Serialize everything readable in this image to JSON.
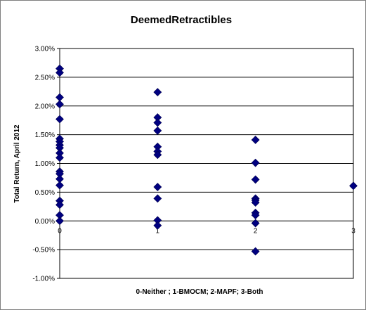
{
  "chart_data": {
    "type": "scatter",
    "title": "DeemedRetractibles",
    "xlabel": "0-Neither ; 1-BMOCM; 2-MAPF; 3-Both",
    "ylabel": "Total Return, April 2012",
    "xlim": [
      0,
      3
    ],
    "ylim": [
      -1.0,
      3.0
    ],
    "x_ticks": [
      "0",
      "1",
      "2",
      "3"
    ],
    "y_ticks": [
      "-1.00%",
      "-0.50%",
      "0.00%",
      "0.50%",
      "1.00%",
      "1.50%",
      "2.00%",
      "2.50%",
      "3.00%"
    ],
    "y_tick_values": [
      -1.0,
      -0.5,
      0.0,
      0.5,
      1.0,
      1.5,
      2.0,
      2.5,
      3.0
    ],
    "grid": "horizontal",
    "marker_color": "#000080",
    "series": [
      {
        "points": [
          {
            "x": 0,
            "y": 2.65
          },
          {
            "x": 0,
            "y": 2.58
          },
          {
            "x": 0,
            "y": 2.15
          },
          {
            "x": 0,
            "y": 2.03
          },
          {
            "x": 0,
            "y": 1.77
          },
          {
            "x": 0,
            "y": 1.43
          },
          {
            "x": 0,
            "y": 1.38
          },
          {
            "x": 0,
            "y": 1.32
          },
          {
            "x": 0,
            "y": 1.27
          },
          {
            "x": 0,
            "y": 1.18
          },
          {
            "x": 0,
            "y": 1.1
          },
          {
            "x": 0,
            "y": 0.86
          },
          {
            "x": 0,
            "y": 0.82
          },
          {
            "x": 0,
            "y": 0.73
          },
          {
            "x": 0,
            "y": 0.62
          },
          {
            "x": 0,
            "y": 0.35
          },
          {
            "x": 0,
            "y": 0.28
          },
          {
            "x": 0,
            "y": 0.1
          },
          {
            "x": 0,
            "y": 0.0
          },
          {
            "x": 1,
            "y": 2.24
          },
          {
            "x": 1,
            "y": 1.8
          },
          {
            "x": 1,
            "y": 1.71
          },
          {
            "x": 1,
            "y": 1.57
          },
          {
            "x": 1,
            "y": 1.29
          },
          {
            "x": 1,
            "y": 1.21
          },
          {
            "x": 1,
            "y": 1.15
          },
          {
            "x": 1,
            "y": 0.59
          },
          {
            "x": 1,
            "y": 0.39
          },
          {
            "x": 1,
            "y": 0.01
          },
          {
            "x": 1,
            "y": -0.08
          },
          {
            "x": 2,
            "y": 1.41
          },
          {
            "x": 2,
            "y": 1.01
          },
          {
            "x": 2,
            "y": 0.72
          },
          {
            "x": 2,
            "y": 0.39
          },
          {
            "x": 2,
            "y": 0.36
          },
          {
            "x": 2,
            "y": 0.32
          },
          {
            "x": 2,
            "y": 0.14
          },
          {
            "x": 2,
            "y": 0.1
          },
          {
            "x": 2,
            "y": -0.04
          },
          {
            "x": 2,
            "y": -0.53
          },
          {
            "x": 3,
            "y": 0.61
          }
        ]
      }
    ]
  }
}
